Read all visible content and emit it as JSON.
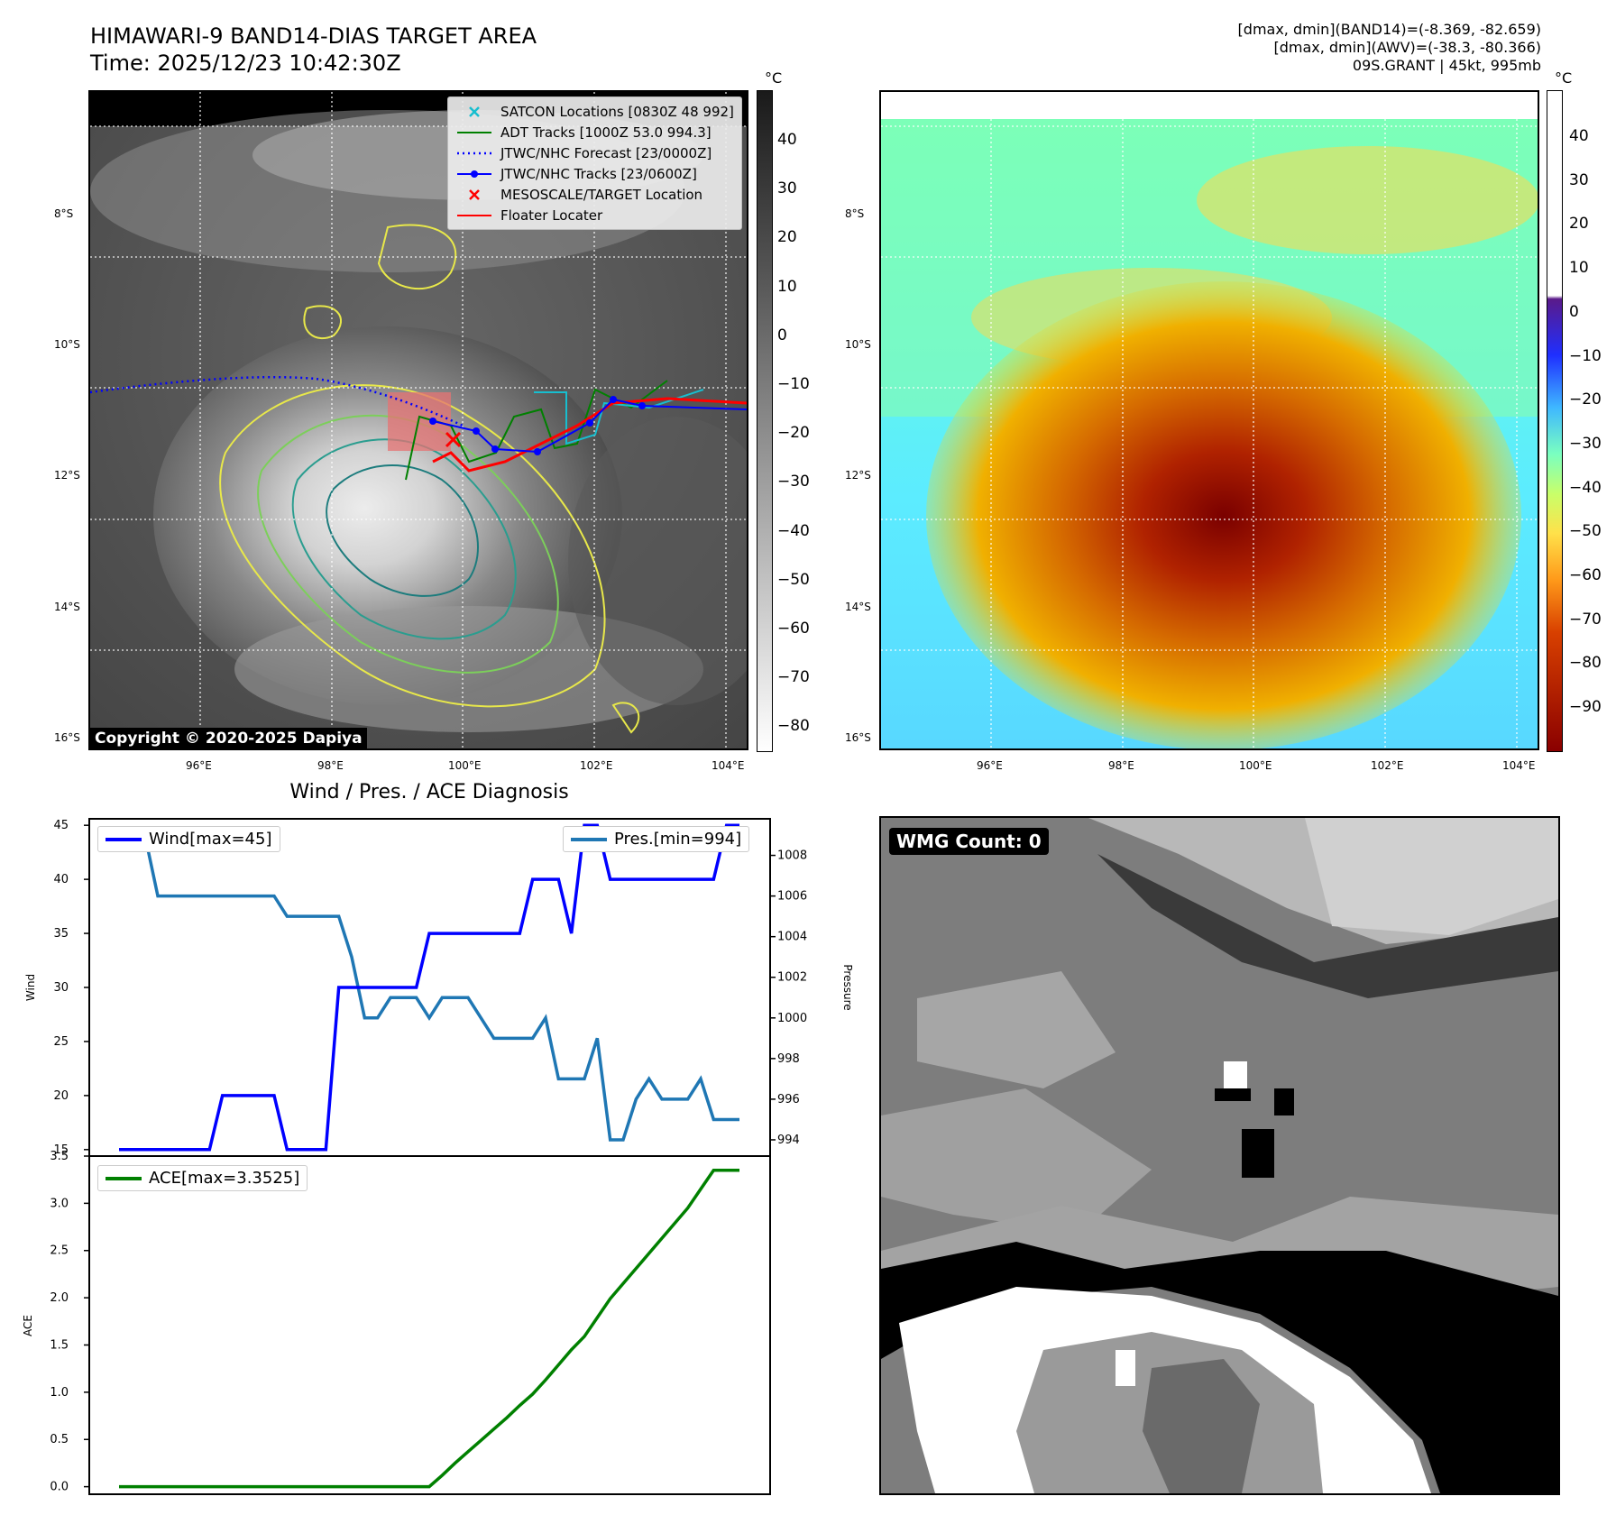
{
  "header": {
    "title_line1": "HIMAWARI-9 BAND14-DIAS TARGET AREA",
    "title_line2": "Time: 2025/12/23 10:42:30Z",
    "right_line1": "[dmax, dmin](BAND14)=(-8.369, -82.659)",
    "right_line2": "[dmax, dmin](AWV)=(-38.3, -80.366)",
    "right_line3": "09S.GRANT | 45kt, 995mb"
  },
  "map_axes": {
    "lat_labels": [
      "8°S",
      "10°S",
      "12°S",
      "14°S",
      "16°S"
    ],
    "lon_labels": [
      "96°E",
      "98°E",
      "100°E",
      "102°E",
      "104°E"
    ]
  },
  "ir_panel": {
    "colorbar_unit": "°C",
    "colorbar_ticks": [
      "40",
      "30",
      "20",
      "10",
      "0",
      "−10",
      "−20",
      "−30",
      "−40",
      "−50",
      "−60",
      "−70",
      "−80"
    ],
    "copyright": "Copyright © 2020-2025 Dapiya",
    "legend": [
      {
        "label": "SATCON Locations [0830Z 48 992]",
        "color": "#17becf",
        "marker": "x"
      },
      {
        "label": "ADT Tracks [1000Z 53.0 994.3]",
        "color": "#008000",
        "marker": "line"
      },
      {
        "label": "JTWC/NHC Forecast [23/0000Z]",
        "color": "#0000ff",
        "marker": "dotted"
      },
      {
        "label": "JTWC/NHC Tracks [23/0600Z]",
        "color": "#0000ff",
        "marker": "line-dot"
      },
      {
        "label": "MESOSCALE/TARGET Location",
        "color": "#ff0000",
        "marker": "x"
      },
      {
        "label": "Floater Locater",
        "color": "#ff0000",
        "marker": "line"
      }
    ]
  },
  "awv_panel": {
    "colorbar_unit": "°C",
    "colorbar_ticks": [
      "40",
      "30",
      "20",
      "10",
      "0",
      "−10",
      "−20",
      "−30",
      "−40",
      "−50",
      "−60",
      "−70",
      "−80",
      "−90"
    ]
  },
  "diagnosis": {
    "title": "Wind / Pres. / ACE Diagnosis",
    "wind_ylabel": "Wind",
    "pressure_ylabel": "Pressure",
    "ace_ylabel": "ACE",
    "wind_legend": "Wind[max=45]",
    "pres_legend": "Pres.[min=994]",
    "ace_legend": "ACE[max=3.3525]"
  },
  "wmg_panel": {
    "label": "WMG Count: 0"
  },
  "chart_data": [
    {
      "type": "line",
      "name": "wind-pressure",
      "x": [
        0,
        1,
        2,
        3,
        4,
        5,
        6,
        7,
        8,
        9,
        10,
        11,
        12,
        13,
        14,
        15,
        16,
        17,
        18,
        19,
        20,
        21,
        22,
        23,
        24,
        25,
        26,
        27,
        28,
        29,
        30,
        31,
        32,
        33,
        34,
        35,
        36,
        37,
        38,
        39,
        40,
        41,
        42,
        43,
        44,
        45,
        46,
        47,
        48
      ],
      "series": [
        {
          "name": "Wind[max=45]",
          "color": "#0000ff",
          "axis": "left",
          "values": [
            15,
            15,
            15,
            15,
            15,
            15,
            15,
            15,
            20,
            20,
            20,
            20,
            20,
            15,
            15,
            15,
            15,
            30,
            30,
            30,
            30,
            30,
            30,
            30,
            35,
            35,
            35,
            35,
            35,
            35,
            35,
            35,
            40,
            40,
            40,
            35,
            45,
            45,
            40,
            40,
            40,
            40,
            40,
            40,
            40,
            40,
            40,
            45,
            45
          ]
        },
        {
          "name": "Pres.[min=994]",
          "color": "#1f77b4",
          "axis": "right",
          "values": [
            1009,
            1009,
            1009,
            1006,
            1006,
            1006,
            1006,
            1006,
            1006,
            1006,
            1006,
            1006,
            1006,
            1005,
            1005,
            1005,
            1005,
            1005,
            1003,
            1000,
            1000,
            1001,
            1001,
            1001,
            1000,
            1001,
            1001,
            1001,
            1000,
            999,
            999,
            999,
            999,
            1000,
            997,
            997,
            997,
            999,
            994,
            994,
            996,
            997,
            996,
            996,
            996,
            997,
            995,
            995,
            995
          ]
        }
      ],
      "ylim_left": [
        14.4,
        45.6
      ],
      "ylim_right": [
        993.2,
        1009.8
      ],
      "yticks_left": [
        15,
        20,
        25,
        30,
        35,
        40,
        45
      ],
      "yticks_right": [
        994,
        996,
        998,
        1000,
        1002,
        1004,
        1006,
        1008
      ]
    },
    {
      "type": "line",
      "name": "ace",
      "x": [
        0,
        1,
        2,
        3,
        4,
        5,
        6,
        7,
        8,
        9,
        10,
        11,
        12,
        13,
        14,
        15,
        16,
        17,
        18,
        19,
        20,
        21,
        22,
        23,
        24,
        25,
        26,
        27,
        28,
        29,
        30,
        31,
        32,
        33,
        34,
        35,
        36,
        37,
        38,
        39,
        40,
        41,
        42,
        43,
        44,
        45,
        46,
        47,
        48
      ],
      "series": [
        {
          "name": "ACE[max=3.3525]",
          "color": "#008000",
          "values": [
            0,
            0,
            0,
            0,
            0,
            0,
            0,
            0,
            0,
            0,
            0,
            0,
            0,
            0,
            0,
            0,
            0,
            0,
            0,
            0,
            0,
            0,
            0,
            0,
            0.0,
            0.12,
            0.25,
            0.37,
            0.49,
            0.61,
            0.73,
            0.86,
            0.98,
            1.13,
            1.29,
            1.45,
            1.59,
            1.79,
            1.99,
            2.15,
            2.31,
            2.47,
            2.63,
            2.79,
            2.95,
            3.15,
            3.35,
            3.35,
            3.35
          ]
        }
      ],
      "ylim": [
        -0.08,
        3.5
      ],
      "yticks": [
        0.0,
        0.5,
        1.0,
        1.5,
        2.0,
        2.5,
        3.0,
        3.5
      ]
    }
  ]
}
